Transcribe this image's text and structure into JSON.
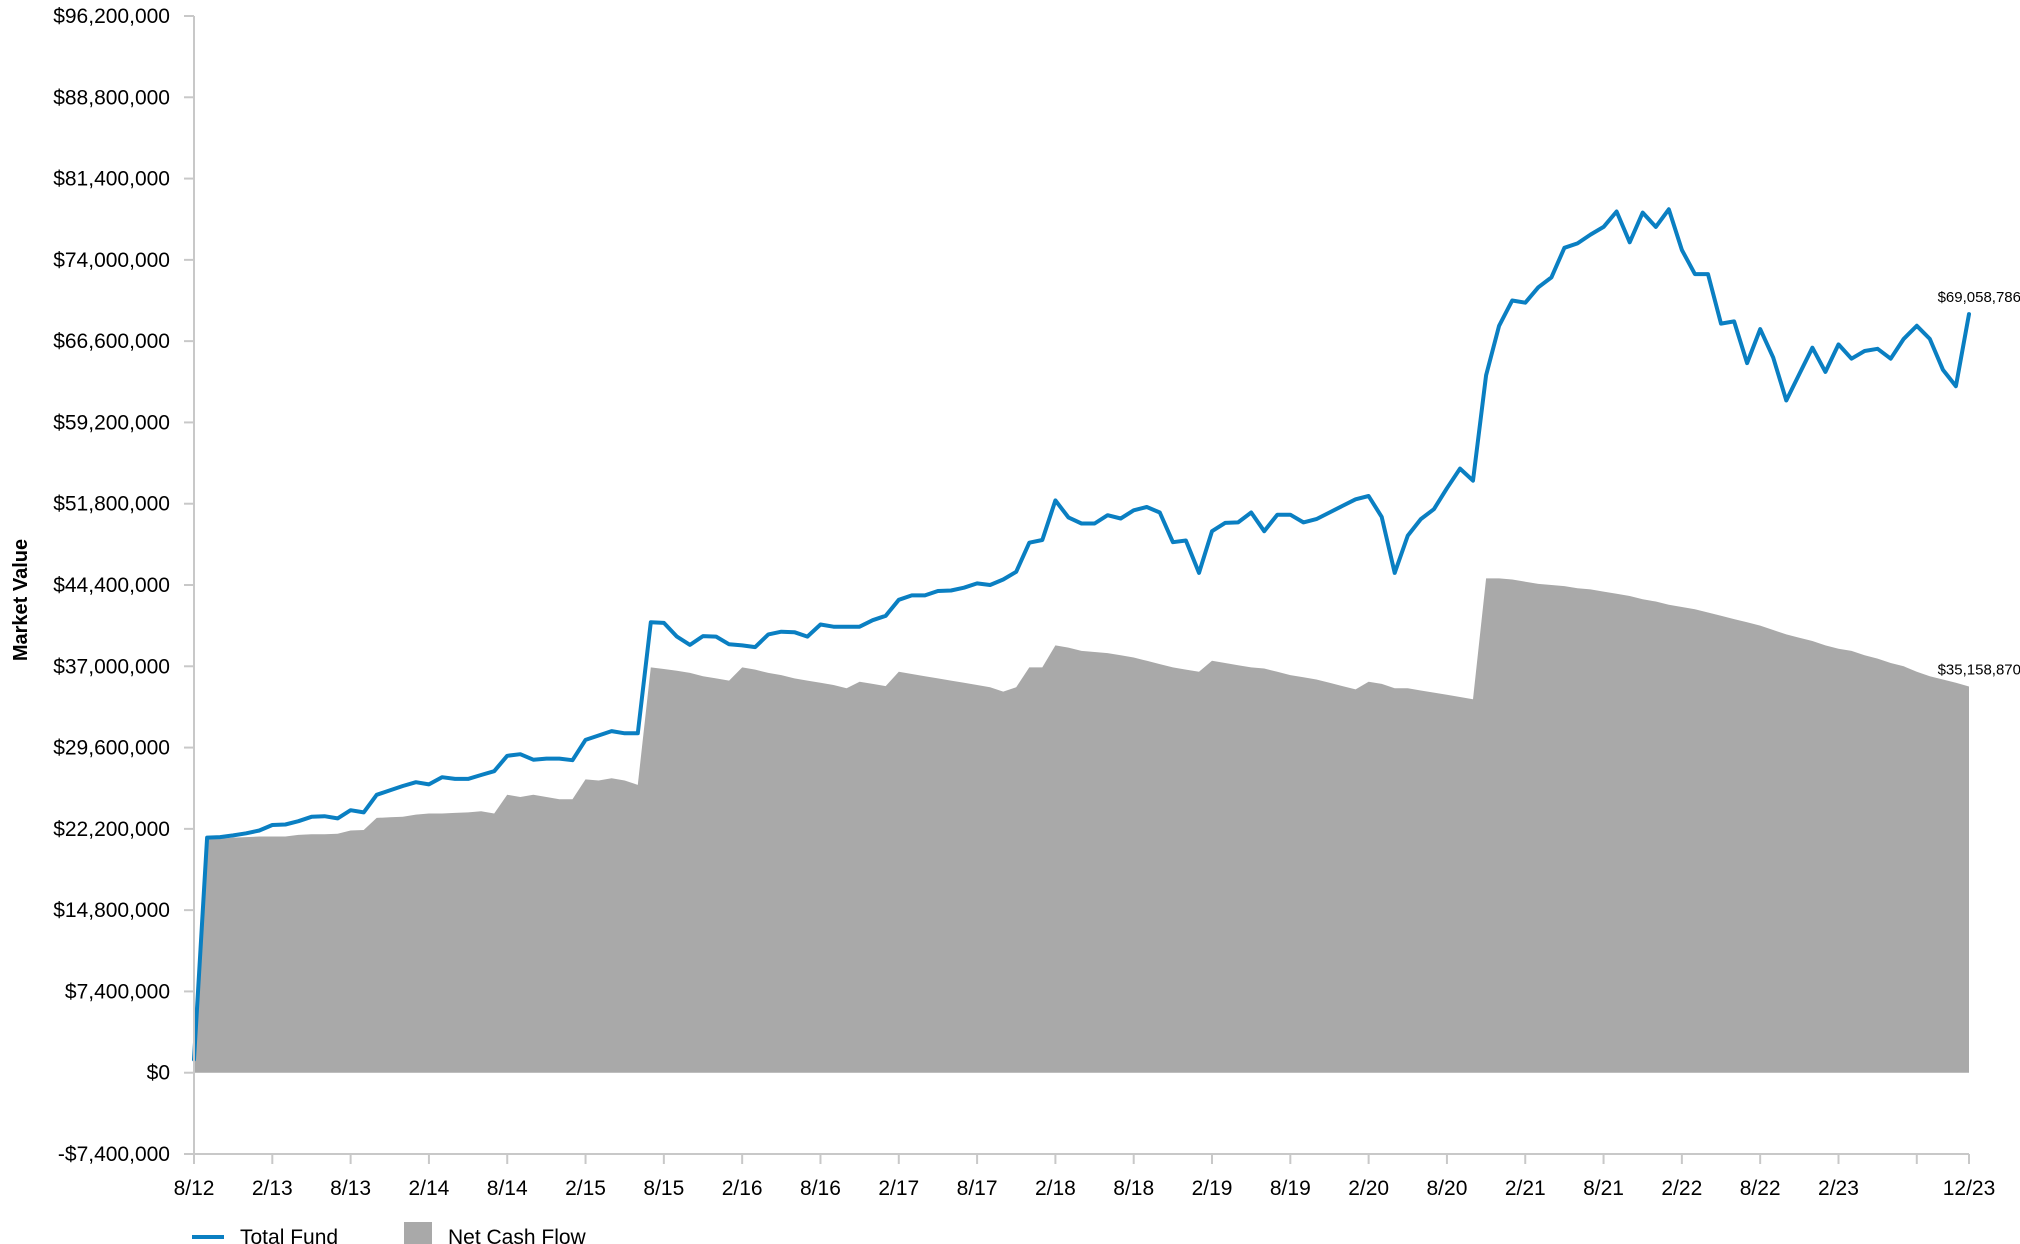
{
  "chart_data": {
    "type": "line",
    "title": "",
    "ylabel": "Market Value",
    "xlabel": "",
    "ylim": [
      -7400000,
      96200000
    ],
    "y_ticks": [
      96200000,
      88800000,
      81400000,
      74000000,
      66600000,
      59200000,
      51800000,
      44400000,
      37000000,
      29600000,
      22200000,
      14800000,
      7400000,
      0,
      -7400000
    ],
    "y_tick_labels": [
      "$96,200,000",
      "$88,800,000",
      "$81,400,000",
      "$74,000,000",
      "$66,600,000",
      "$59,200,000",
      "$51,800,000",
      "$44,400,000",
      "$37,000,000",
      "$29,600,000",
      "$22,200,000",
      "$14,800,000",
      "$7,400,000",
      "$0",
      "-$7,400,000"
    ],
    "xlim": [
      0,
      136
    ],
    "x_ticks": [
      0,
      6,
      12,
      18,
      24,
      30,
      36,
      42,
      48,
      54,
      60,
      66,
      72,
      78,
      84,
      90,
      96,
      102,
      108,
      114,
      120,
      126,
      132,
      136
    ],
    "x_tick_labels": [
      "8/12",
      "2/13",
      "8/13",
      "2/14",
      "8/14",
      "2/15",
      "8/15",
      "2/16",
      "8/16",
      "2/17",
      "8/17",
      "2/18",
      "8/18",
      "2/19",
      "8/19",
      "2/20",
      "8/20",
      "2/21",
      "8/21",
      "2/22",
      "8/22",
      "2/23",
      "",
      "12/23"
    ],
    "grid": false,
    "legend": "bottom-left",
    "series": [
      {
        "name": "Total Fund",
        "color": "#0a7fc2",
        "kind": "line",
        "end_label": "$69,058,786",
        "points": [
          [
            0,
            1200000
          ],
          [
            1,
            21400000
          ],
          [
            2,
            21450000
          ],
          [
            3,
            21600000
          ],
          [
            4,
            21800000
          ],
          [
            5,
            22050000
          ],
          [
            6,
            22550000
          ],
          [
            7,
            22600000
          ],
          [
            8,
            22900000
          ],
          [
            9,
            23300000
          ],
          [
            10,
            23350000
          ],
          [
            11,
            23150000
          ],
          [
            12,
            23900000
          ],
          [
            13,
            23700000
          ],
          [
            14,
            25300000
          ],
          [
            15,
            25700000
          ],
          [
            16,
            26100000
          ],
          [
            17,
            26450000
          ],
          [
            18,
            26250000
          ],
          [
            19,
            26900000
          ],
          [
            20,
            26750000
          ],
          [
            21,
            26750000
          ],
          [
            22,
            27100000
          ],
          [
            23,
            27450000
          ],
          [
            24,
            28850000
          ],
          [
            25,
            29000000
          ],
          [
            26,
            28500000
          ],
          [
            27,
            28600000
          ],
          [
            28,
            28600000
          ],
          [
            29,
            28450000
          ],
          [
            30,
            30300000
          ],
          [
            31,
            30700000
          ],
          [
            32,
            31100000
          ],
          [
            33,
            30900000
          ],
          [
            34,
            30900000
          ],
          [
            35,
            41000000
          ],
          [
            36,
            40950000
          ],
          [
            37,
            39700000
          ],
          [
            38,
            38950000
          ],
          [
            39,
            39750000
          ],
          [
            40,
            39700000
          ],
          [
            41,
            39000000
          ],
          [
            42,
            38900000
          ],
          [
            43,
            38750000
          ],
          [
            44,
            39900000
          ],
          [
            45,
            40150000
          ],
          [
            46,
            40100000
          ],
          [
            47,
            39700000
          ],
          [
            48,
            40800000
          ],
          [
            49,
            40600000
          ],
          [
            50,
            40600000
          ],
          [
            51,
            40600000
          ],
          [
            52,
            41200000
          ],
          [
            53,
            41600000
          ],
          [
            54,
            43050000
          ],
          [
            55,
            43450000
          ],
          [
            56,
            43450000
          ],
          [
            57,
            43850000
          ],
          [
            58,
            43900000
          ],
          [
            59,
            44150000
          ],
          [
            60,
            44550000
          ],
          [
            61,
            44400000
          ],
          [
            62,
            44900000
          ],
          [
            63,
            45600000
          ],
          [
            64,
            48250000
          ],
          [
            65,
            48500000
          ],
          [
            66,
            52100000
          ],
          [
            67,
            50550000
          ],
          [
            68,
            50000000
          ],
          [
            69,
            50000000
          ],
          [
            70,
            50750000
          ],
          [
            71,
            50450000
          ],
          [
            72,
            51200000
          ],
          [
            73,
            51500000
          ],
          [
            74,
            51000000
          ],
          [
            75,
            48300000
          ],
          [
            76,
            48450000
          ],
          [
            77,
            45500000
          ],
          [
            78,
            49300000
          ],
          [
            79,
            50050000
          ],
          [
            80,
            50100000
          ],
          [
            81,
            51000000
          ],
          [
            82,
            49300000
          ],
          [
            83,
            50800000
          ],
          [
            84,
            50800000
          ],
          [
            85,
            50100000
          ],
          [
            86,
            50400000
          ],
          [
            87,
            51000000
          ],
          [
            88,
            51600000
          ],
          [
            89,
            52200000
          ],
          [
            90,
            52500000
          ],
          [
            91,
            50600000
          ],
          [
            92,
            45500000
          ],
          [
            93,
            48900000
          ],
          [
            94,
            50400000
          ],
          [
            95,
            51300000
          ],
          [
            96,
            53200000
          ],
          [
            97,
            55000000
          ],
          [
            98,
            53900000
          ],
          [
            99,
            63500000
          ],
          [
            100,
            68000000
          ],
          [
            101,
            70300000
          ],
          [
            102,
            70100000
          ],
          [
            103,
            71500000
          ],
          [
            104,
            72400000
          ],
          [
            105,
            75100000
          ],
          [
            106,
            75500000
          ],
          [
            107,
            76300000
          ],
          [
            108,
            77000000
          ],
          [
            109,
            78400000
          ],
          [
            110,
            75600000
          ],
          [
            111,
            78300000
          ],
          [
            112,
            77000000
          ],
          [
            113,
            78600000
          ],
          [
            114,
            74900000
          ],
          [
            115,
            72700000
          ],
          [
            116,
            72700000
          ],
          [
            117,
            68200000
          ],
          [
            118,
            68400000
          ],
          [
            119,
            64600000
          ],
          [
            120,
            67700000
          ],
          [
            121,
            65100000
          ],
          [
            122,
            61200000
          ],
          [
            123,
            63600000
          ],
          [
            124,
            66000000
          ],
          [
            125,
            63800000
          ],
          [
            126,
            66300000
          ],
          [
            127,
            65000000
          ],
          [
            128,
            65700000
          ],
          [
            129,
            65900000
          ],
          [
            130,
            65000000
          ],
          [
            131,
            66800000
          ],
          [
            132,
            68000000
          ],
          [
            133,
            66800000
          ],
          [
            134,
            64000000
          ],
          [
            135,
            62500000
          ],
          [
            136,
            69058786
          ]
        ]
      },
      {
        "name": "Net Cash Flow",
        "color": "#a9a9a9",
        "kind": "area",
        "end_label": "$35,158,870",
        "points": [
          [
            0,
            0
          ],
          [
            1,
            21300000
          ],
          [
            2,
            21300000
          ],
          [
            3,
            21400000
          ],
          [
            4,
            21450000
          ],
          [
            5,
            21500000
          ],
          [
            6,
            21500000
          ],
          [
            7,
            21500000
          ],
          [
            8,
            21650000
          ],
          [
            9,
            21700000
          ],
          [
            10,
            21700000
          ],
          [
            11,
            21750000
          ],
          [
            12,
            22050000
          ],
          [
            13,
            22100000
          ],
          [
            14,
            23200000
          ],
          [
            15,
            23250000
          ],
          [
            16,
            23300000
          ],
          [
            17,
            23500000
          ],
          [
            18,
            23600000
          ],
          [
            19,
            23600000
          ],
          [
            20,
            23650000
          ],
          [
            21,
            23700000
          ],
          [
            22,
            23800000
          ],
          [
            23,
            23600000
          ],
          [
            24,
            25300000
          ],
          [
            25,
            25100000
          ],
          [
            26,
            25300000
          ],
          [
            27,
            25100000
          ],
          [
            28,
            24900000
          ],
          [
            29,
            24900000
          ],
          [
            30,
            26700000
          ],
          [
            31,
            26600000
          ],
          [
            32,
            26800000
          ],
          [
            33,
            26600000
          ],
          [
            34,
            26200000
          ],
          [
            35,
            36900000
          ],
          [
            36,
            36750000
          ],
          [
            37,
            36600000
          ],
          [
            38,
            36400000
          ],
          [
            39,
            36100000
          ],
          [
            40,
            35900000
          ],
          [
            41,
            35700000
          ],
          [
            42,
            36900000
          ],
          [
            43,
            36700000
          ],
          [
            44,
            36400000
          ],
          [
            45,
            36200000
          ],
          [
            46,
            35900000
          ],
          [
            47,
            35700000
          ],
          [
            48,
            35500000
          ],
          [
            49,
            35300000
          ],
          [
            50,
            35000000
          ],
          [
            51,
            35600000
          ],
          [
            52,
            35400000
          ],
          [
            53,
            35200000
          ],
          [
            54,
            36500000
          ],
          [
            55,
            36300000
          ],
          [
            56,
            36100000
          ],
          [
            57,
            35900000
          ],
          [
            58,
            35700000
          ],
          [
            59,
            35500000
          ],
          [
            60,
            35300000
          ],
          [
            61,
            35100000
          ],
          [
            62,
            34700000
          ],
          [
            63,
            35100000
          ],
          [
            64,
            36900000
          ],
          [
            65,
            36900000
          ],
          [
            66,
            38900000
          ],
          [
            67,
            38700000
          ],
          [
            68,
            38400000
          ],
          [
            69,
            38300000
          ],
          [
            70,
            38200000
          ],
          [
            71,
            38000000
          ],
          [
            72,
            37800000
          ],
          [
            73,
            37500000
          ],
          [
            74,
            37200000
          ],
          [
            75,
            36900000
          ],
          [
            76,
            36700000
          ],
          [
            77,
            36500000
          ],
          [
            78,
            37500000
          ],
          [
            79,
            37300000
          ],
          [
            80,
            37100000
          ],
          [
            81,
            36900000
          ],
          [
            82,
            36800000
          ],
          [
            83,
            36500000
          ],
          [
            84,
            36200000
          ],
          [
            85,
            36000000
          ],
          [
            86,
            35800000
          ],
          [
            87,
            35500000
          ],
          [
            88,
            35200000
          ],
          [
            89,
            34900000
          ],
          [
            90,
            35600000
          ],
          [
            91,
            35400000
          ],
          [
            92,
            35000000
          ],
          [
            93,
            35000000
          ],
          [
            94,
            34800000
          ],
          [
            95,
            34600000
          ],
          [
            96,
            34400000
          ],
          [
            97,
            34200000
          ],
          [
            98,
            34000000
          ],
          [
            99,
            45000000
          ],
          [
            100,
            45000000
          ],
          [
            101,
            44900000
          ],
          [
            102,
            44700000
          ],
          [
            103,
            44500000
          ],
          [
            104,
            44400000
          ],
          [
            105,
            44300000
          ],
          [
            106,
            44100000
          ],
          [
            107,
            44000000
          ],
          [
            108,
            43800000
          ],
          [
            109,
            43600000
          ],
          [
            110,
            43400000
          ],
          [
            111,
            43100000
          ],
          [
            112,
            42900000
          ],
          [
            113,
            42600000
          ],
          [
            114,
            42400000
          ],
          [
            115,
            42200000
          ],
          [
            116,
            41900000
          ],
          [
            117,
            41600000
          ],
          [
            118,
            41300000
          ],
          [
            119,
            41000000
          ],
          [
            120,
            40700000
          ],
          [
            121,
            40300000
          ],
          [
            122,
            39900000
          ],
          [
            123,
            39600000
          ],
          [
            124,
            39300000
          ],
          [
            125,
            38900000
          ],
          [
            126,
            38600000
          ],
          [
            127,
            38400000
          ],
          [
            128,
            38000000
          ],
          [
            129,
            37700000
          ],
          [
            130,
            37300000
          ],
          [
            131,
            37000000
          ],
          [
            132,
            36500000
          ],
          [
            133,
            36100000
          ],
          [
            134,
            35800000
          ],
          [
            135,
            35500000
          ],
          [
            136,
            35158870
          ]
        ]
      }
    ]
  }
}
